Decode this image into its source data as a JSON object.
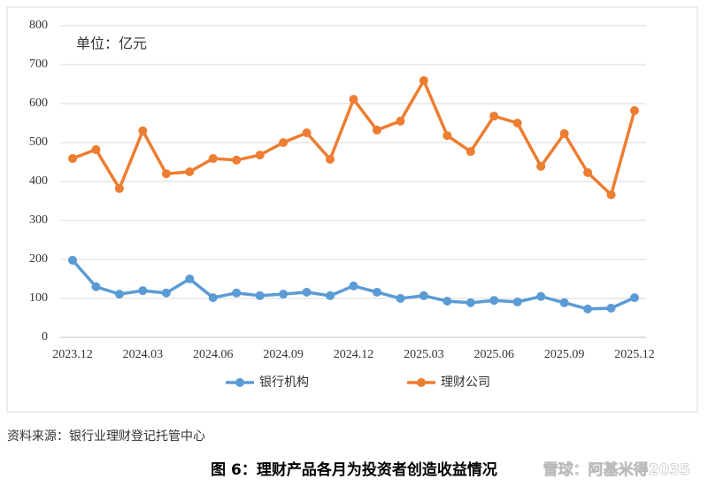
{
  "chart_data": {
    "type": "line",
    "annotation": "单位：亿元",
    "categories": [
      "2023.12",
      null,
      null,
      "2024.03",
      null,
      null,
      "2024.06",
      null,
      null,
      "2024.09",
      null,
      null,
      "2024.12",
      null,
      null,
      "2025.03",
      null,
      null,
      "2025.06",
      null,
      null,
      "2025.09",
      null,
      null,
      "2025.12"
    ],
    "series": [
      {
        "name": "银行机构",
        "color": "#5b9bd5",
        "values": [
          198,
          130,
          111,
          120,
          114,
          150,
          102,
          114,
          107,
          111,
          116,
          107,
          132,
          116,
          100,
          107,
          93,
          89,
          95,
          91,
          105,
          89,
          73,
          75,
          102
        ]
      },
      {
        "name": "理财公司",
        "color": "#ed7d31",
        "values": [
          459,
          482,
          382,
          530,
          420,
          425,
          459,
          455,
          468,
          500,
          525,
          457,
          611,
          532,
          555,
          659,
          518,
          477,
          568,
          550,
          439,
          523,
          423,
          366,
          582
        ]
      }
    ],
    "ylim": [
      0,
      800
    ],
    "yticks": [
      0,
      100,
      200,
      300,
      400,
      500,
      600,
      700,
      800
    ],
    "grid": true,
    "legend": "bottom"
  },
  "source": "资料来源：银行业理财登记托管中心",
  "caption": "图 6：理财产品各月为投资者创造收益情况",
  "watermark": "雪球：阿基米得2035"
}
